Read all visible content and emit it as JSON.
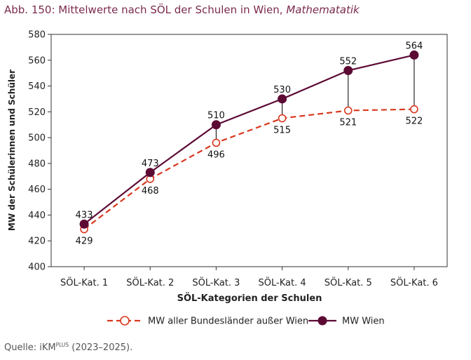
{
  "title": "Abb. 150: Mittelwerte nach SÖL der Schulen in Wien,",
  "title_italic": "Mathematatik",
  "source": {
    "prefix": "Quelle: iKM",
    "superscript": "PLUS",
    "suffix": " (2023–2025)."
  },
  "chart_data": {
    "type": "line",
    "xlabel": "SÖL-Kategorien der Schulen",
    "ylabel": "MW der Schülerinnen und Schüler",
    "categories": [
      "SÖL-Kat. 1",
      "SÖL-Kat. 2",
      "SÖL-Kat. 3",
      "SÖL-Kat. 4",
      "SÖL-Kat. 5",
      "SÖL-Kat. 6"
    ],
    "ylim": [
      400,
      580
    ],
    "yticks": [
      400,
      420,
      440,
      460,
      480,
      500,
      520,
      540,
      560,
      580
    ],
    "grid": false,
    "legend_position": "bottom",
    "series": [
      {
        "name": "MW aller Bundesländer außer Wien",
        "values": [
          429,
          468,
          496,
          515,
          521,
          522
        ],
        "color": "#d9381e",
        "style": "dashed",
        "marker": "open-circle",
        "label_side": "below"
      },
      {
        "name": "MW Wien",
        "values": [
          433,
          473,
          510,
          530,
          552,
          564
        ],
        "color": "#5c0a34",
        "style": "solid",
        "marker": "filled-circle",
        "label_side": "above"
      }
    ]
  }
}
